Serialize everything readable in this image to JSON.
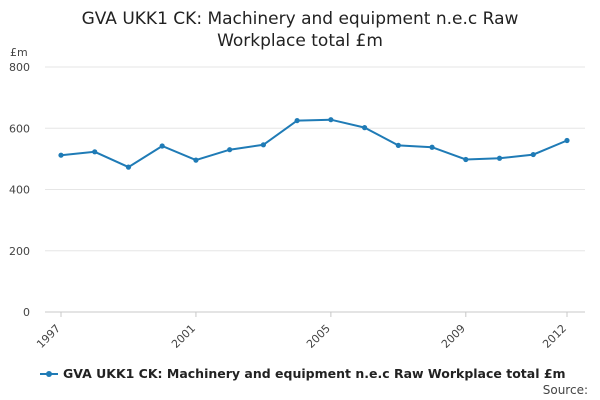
{
  "chart_data": {
    "type": "line",
    "title_lines": [
      "GVA UKK1 CK: Machinery and equipment n.e.c Raw",
      "Workplace total £m"
    ],
    "unit_label": "£m",
    "x": [
      1997,
      1998,
      1999,
      2000,
      2001,
      2002,
      2003,
      2004,
      2005,
      2006,
      2007,
      2008,
      2009,
      2010,
      2011,
      2012
    ],
    "x_tick_labels": [
      "1997",
      "2001",
      "2005",
      "2009",
      "2012"
    ],
    "x_tick_values": [
      1997,
      2001,
      2005,
      2009,
      2012
    ],
    "y_ticks": [
      "0",
      "200",
      "400",
      "600",
      "800"
    ],
    "y_tick_values": [
      0,
      200,
      400,
      600,
      800
    ],
    "ylim": [
      0,
      800
    ],
    "grid": true,
    "legend_position": "bottom-left",
    "series": [
      {
        "name": "GVA UKK1 CK: Machinery and equipment n.e.c Raw Workplace total £m",
        "color": "#1f7bb6",
        "values": [
          512,
          523,
          473,
          542,
          496,
          530,
          546,
          625,
          628,
          602,
          544,
          538,
          498,
          502,
          514,
          560
        ]
      }
    ]
  },
  "source_label": "Source:"
}
